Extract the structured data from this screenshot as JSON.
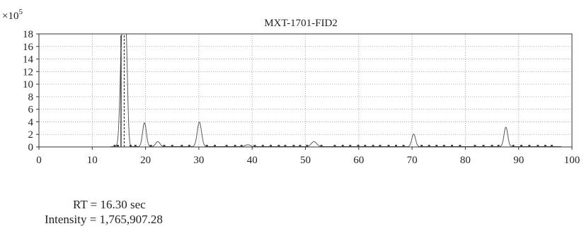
{
  "chart_data": {
    "type": "line",
    "title": "MXT-1701-FID2",
    "multiplier_label": "×10",
    "multiplier_exponent": "5",
    "xlabel": "",
    "ylabel": "",
    "xlim": [
      0,
      100
    ],
    "ylim": [
      0,
      18
    ],
    "xticks": [
      0,
      10,
      20,
      30,
      40,
      50,
      60,
      70,
      80,
      90,
      100
    ],
    "yticks": [
      0,
      2,
      4,
      6,
      8,
      10,
      12,
      14,
      16,
      18
    ],
    "grid": true,
    "grid_style": "dotted",
    "peaks": [
      {
        "rt": 15.6,
        "height": 17.8,
        "width": 0.35
      },
      {
        "rt": 16.3,
        "height": 17.66,
        "width": 0.3
      },
      {
        "rt": 19.8,
        "height": 3.8,
        "width": 0.35
      },
      {
        "rt": 22.3,
        "height": 0.8,
        "width": 0.4
      },
      {
        "rt": 30.1,
        "height": 3.9,
        "width": 0.4
      },
      {
        "rt": 39.2,
        "height": 0.3,
        "width": 0.5
      },
      {
        "rt": 51.6,
        "height": 0.8,
        "width": 0.5
      },
      {
        "rt": 70.3,
        "height": 2.0,
        "width": 0.35
      },
      {
        "rt": 87.6,
        "height": 3.1,
        "width": 0.35
      }
    ],
    "baseline_markers_x": [
      14.2,
      14.8,
      17.2,
      18.1,
      21.0,
      23.5,
      25.0,
      26.8,
      28.2,
      31.5,
      33.0,
      35.2,
      36.8,
      38.0,
      40.5,
      42.0,
      43.5,
      45.0,
      46.2,
      47.8,
      49.0,
      50.3,
      53.0,
      55.5,
      57.0,
      58.4,
      59.9,
      61.2,
      62.7,
      64.0,
      65.6,
      67.0,
      68.4,
      71.8,
      73.2,
      74.6,
      76.0,
      77.5,
      79.0,
      81.8,
      83.4,
      85.0,
      86.2,
      89.0,
      90.5,
      92.0,
      93.6,
      95.0,
      96.2
    ]
  },
  "readout": {
    "rt_line": "RT = 16.30 sec",
    "intensity_line": "Intensity = 1,765,907.28"
  },
  "colors": {
    "trace": "#5a5a5a",
    "axis": "#333333",
    "grid": "#9a9a9a",
    "dashed": "#333333"
  }
}
